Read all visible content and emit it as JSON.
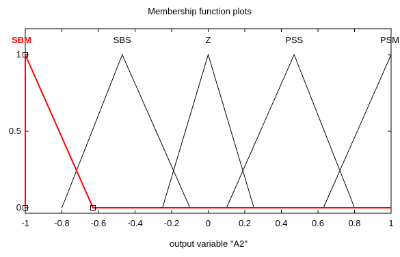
{
  "chart_data": {
    "type": "line",
    "title": "Membership function plots",
    "xlabel": "output variable \"A2\"",
    "ylabel": "",
    "xlim": [
      -1,
      1
    ],
    "ylim": [
      0,
      1
    ],
    "x_ticks": [
      -1,
      -0.8,
      -0.6,
      -0.4,
      -0.2,
      0,
      0.2,
      0.4,
      0.6,
      0.8,
      1
    ],
    "x_tick_labels": [
      "-1",
      "-0.8",
      "-0.6",
      "-0.4",
      "-0.2",
      "0",
      "0.2",
      "0.4",
      "0.6",
      "0.8",
      "1"
    ],
    "y_ticks": [
      0,
      0.5,
      1
    ],
    "y_tick_labels": [
      "0",
      "0.5",
      "1"
    ],
    "grid": false,
    "series": [
      {
        "name": "SBM",
        "color": "#ff0000",
        "selected": true,
        "x": [
          -1,
          -1,
          -0.63,
          1
        ],
        "y": [
          0,
          1,
          0,
          0
        ]
      },
      {
        "name": "SBS",
        "color": "#000000",
        "x": [
          -0.8,
          -0.47,
          -0.1
        ],
        "y": [
          0,
          1,
          0
        ]
      },
      {
        "name": "Z",
        "color": "#000000",
        "x": [
          -0.25,
          0,
          0.25
        ],
        "y": [
          0,
          1,
          0
        ]
      },
      {
        "name": "PSS",
        "color": "#000000",
        "x": [
          0.1,
          0.47,
          0.8
        ],
        "y": [
          0,
          1,
          0
        ]
      },
      {
        "name": "PSM",
        "color": "#000000",
        "x": [
          0.63,
          1,
          1
        ],
        "y": [
          0,
          1,
          0
        ]
      }
    ]
  }
}
